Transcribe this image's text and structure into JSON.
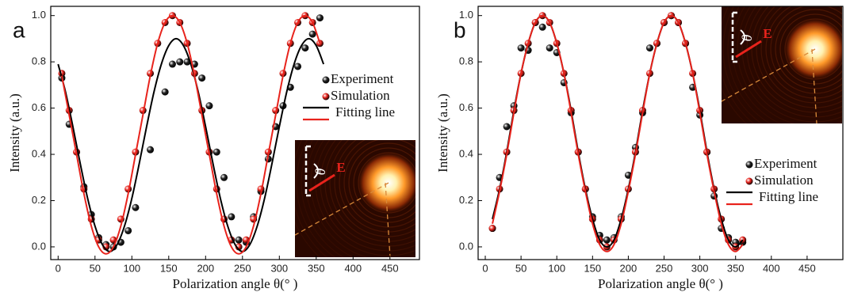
{
  "chart_data": [
    {
      "type": "scatter",
      "panel_label": "a",
      "x_label": "Polarization angle θ(°  )",
      "y_label": "Intensity (a.u.)",
      "xlim": [
        -10,
        490
      ],
      "ylim": [
        -0.055,
        1.04
      ],
      "xticks": [
        0,
        50,
        100,
        150,
        200,
        250,
        300,
        350,
        400,
        450
      ],
      "yticks": [
        {
          "value": 0,
          "label": "0.0"
        },
        0.2,
        0.4,
        0.6,
        0.8,
        {
          "value": 1,
          "label": "1.0"
        }
      ],
      "legend": "upper right",
      "annotations": [
        "θ",
        "E"
      ],
      "series": [
        {
          "name": "Experiment",
          "mode": "markers",
          "color": "#222222",
          "x": [
            5,
            15,
            35,
            45,
            55,
            65,
            75,
            85,
            95,
            105,
            125,
            145,
            155,
            165,
            175,
            185,
            195,
            205,
            215,
            225,
            235,
            245,
            255,
            265,
            275,
            285,
            295,
            305,
            315,
            325,
            335,
            345,
            355
          ],
          "values": [
            0.73,
            0.53,
            0.26,
            0.14,
            0.04,
            0.01,
            0.0,
            0.02,
            0.07,
            0.17,
            0.42,
            0.67,
            0.79,
            0.8,
            0.8,
            0.79,
            0.73,
            0.61,
            0.41,
            0.3,
            0.13,
            0.03,
            0.02,
            0.13,
            0.24,
            0.38,
            0.52,
            0.61,
            0.69,
            0.78,
            0.86,
            0.92,
            0.99
          ]
        },
        {
          "name": "Simulation",
          "mode": "markers",
          "color": "#e8231c",
          "x": [
            5,
            15,
            25,
            35,
            45,
            55,
            65,
            75,
            85,
            95,
            105,
            115,
            125,
            135,
            145,
            155,
            165,
            175,
            185,
            195,
            205,
            215,
            225,
            235,
            245,
            255,
            265,
            275,
            285,
            295,
            305,
            315,
            325,
            335,
            345,
            355
          ],
          "values": [
            0.75,
            0.59,
            0.41,
            0.25,
            0.12,
            0.03,
            0.0,
            0.03,
            0.12,
            0.25,
            0.41,
            0.59,
            0.75,
            0.88,
            0.97,
            1.0,
            0.97,
            0.88,
            0.75,
            0.59,
            0.41,
            0.25,
            0.12,
            0.03,
            0.0,
            0.03,
            0.12,
            0.25,
            0.41,
            0.59,
            0.75,
            0.88,
            0.97,
            1.0,
            0.97,
            0.88
          ]
        },
        {
          "name": "Fitting line",
          "mode": "line",
          "color": "#000000",
          "x": [
            0,
            10,
            20,
            30,
            40,
            50,
            60,
            70,
            80,
            90,
            100,
            110,
            120,
            130,
            140,
            150,
            160,
            170,
            180,
            190,
            200,
            210,
            220,
            230,
            240,
            250,
            260,
            270,
            280,
            290,
            300,
            310,
            320,
            330,
            340,
            350,
            360
          ],
          "values": [
            0.79,
            0.67,
            0.52,
            0.36,
            0.21,
            0.09,
            0.01,
            -0.02,
            0.01,
            0.09,
            0.21,
            0.36,
            0.52,
            0.67,
            0.79,
            0.87,
            0.9,
            0.87,
            0.79,
            0.67,
            0.52,
            0.36,
            0.21,
            0.09,
            0.01,
            -0.02,
            0.01,
            0.09,
            0.21,
            0.36,
            0.52,
            0.67,
            0.79,
            0.87,
            0.9,
            0.87,
            0.79
          ]
        },
        {
          "mode": "line",
          "color": "#e8231c",
          "x": [
            5,
            15,
            25,
            35,
            45,
            55,
            65,
            75,
            85,
            95,
            105,
            115,
            125,
            135,
            145,
            155,
            165,
            175,
            185,
            195,
            205,
            215,
            225,
            235,
            245,
            255,
            265,
            275,
            285,
            295,
            305,
            315,
            325,
            335,
            345,
            355
          ],
          "values": [
            0.74,
            0.57,
            0.4,
            0.23,
            0.09,
            0.0,
            -0.03,
            0.0,
            0.09,
            0.23,
            0.4,
            0.57,
            0.74,
            0.88,
            0.97,
            1.0,
            0.97,
            0.88,
            0.74,
            0.57,
            0.4,
            0.23,
            0.09,
            0.0,
            -0.03,
            0.0,
            0.09,
            0.23,
            0.4,
            0.57,
            0.74,
            0.88,
            0.97,
            1.0,
            0.97,
            0.88
          ]
        }
      ]
    },
    {
      "type": "scatter",
      "panel_label": "b",
      "x_label": "Polarization angle θ(°  )",
      "y_label": "Intensity (a.u.)",
      "xlim": [
        -10,
        500
      ],
      "ylim": [
        -0.055,
        1.04
      ],
      "xticks": [
        0,
        50,
        100,
        150,
        200,
        250,
        300,
        350,
        400,
        450
      ],
      "yticks": [
        {
          "value": 0,
          "label": "0.0"
        },
        0.2,
        0.4,
        0.6,
        0.8,
        {
          "value": 1,
          "label": "1.0"
        }
      ],
      "legend": "lower right",
      "annotations": [
        "θ",
        "E"
      ],
      "series": [
        {
          "name": "Experiment",
          "mode": "markers",
          "color": "#222222",
          "x": [
            10,
            20,
            30,
            40,
            50,
            60,
            70,
            80,
            90,
            100,
            110,
            120,
            130,
            140,
            150,
            160,
            170,
            180,
            190,
            200,
            210,
            220,
            230,
            240,
            250,
            260,
            270,
            280,
            290,
            300,
            310,
            320,
            330,
            340,
            350,
            360
          ],
          "values": [
            0.08,
            0.3,
            0.52,
            0.61,
            0.86,
            0.85,
            0.97,
            0.95,
            0.86,
            0.84,
            0.71,
            0.58,
            0.41,
            0.25,
            0.13,
            0.05,
            0.03,
            0.04,
            0.13,
            0.31,
            0.43,
            0.58,
            0.86,
            0.88,
            0.97,
            1.0,
            0.97,
            0.88,
            0.69,
            0.57,
            0.41,
            0.22,
            0.08,
            0.04,
            0.02,
            0.02
          ]
        },
        {
          "name": "Simulation",
          "mode": "markers",
          "color": "#e8231c",
          "x": [
            10,
            20,
            30,
            40,
            50,
            60,
            70,
            80,
            90,
            100,
            110,
            120,
            130,
            140,
            150,
            160,
            170,
            180,
            190,
            200,
            210,
            220,
            230,
            240,
            250,
            260,
            270,
            280,
            290,
            300,
            310,
            320,
            330,
            340,
            350,
            360
          ],
          "values": [
            0.08,
            0.25,
            0.41,
            0.59,
            0.75,
            0.88,
            0.97,
            1.0,
            0.97,
            0.88,
            0.75,
            0.59,
            0.41,
            0.25,
            0.12,
            0.03,
            0.0,
            0.03,
            0.12,
            0.25,
            0.41,
            0.59,
            0.75,
            0.88,
            0.97,
            1.0,
            0.97,
            0.88,
            0.75,
            0.59,
            0.41,
            0.25,
            0.12,
            0.03,
            0.0,
            0.03
          ]
        },
        {
          "name": "Fitting line",
          "mode": "line",
          "color": "#000000",
          "x": [
            10,
            20,
            30,
            40,
            50,
            60,
            70,
            80,
            90,
            100,
            110,
            120,
            130,
            140,
            150,
            160,
            170,
            180,
            190,
            200,
            210,
            220,
            230,
            240,
            250,
            260,
            270,
            280,
            290,
            300,
            310,
            320,
            330,
            340,
            350,
            360
          ],
          "values": [
            0.12,
            0.25,
            0.41,
            0.59,
            0.75,
            0.88,
            0.97,
            1.0,
            0.97,
            0.88,
            0.75,
            0.59,
            0.41,
            0.25,
            0.12,
            0.03,
            0.0,
            0.03,
            0.12,
            0.25,
            0.41,
            0.59,
            0.75,
            0.88,
            0.97,
            1.0,
            0.97,
            0.88,
            0.75,
            0.59,
            0.41,
            0.25,
            0.12,
            0.03,
            0.0,
            0.03
          ]
        },
        {
          "mode": "line",
          "color": "#e8231c",
          "x": [
            10,
            20,
            30,
            40,
            50,
            60,
            70,
            80,
            90,
            100,
            110,
            120,
            130,
            140,
            150,
            160,
            170,
            180,
            190,
            200,
            210,
            220,
            230,
            240,
            250,
            260,
            270,
            280,
            290,
            300,
            310,
            320,
            330,
            340,
            350,
            360
          ],
          "values": [
            0.1,
            0.24,
            0.4,
            0.58,
            0.75,
            0.88,
            0.97,
            1.0,
            0.97,
            0.88,
            0.75,
            0.58,
            0.4,
            0.24,
            0.1,
            0.01,
            -0.02,
            0.01,
            0.1,
            0.24,
            0.4,
            0.58,
            0.75,
            0.88,
            0.97,
            1.0,
            0.97,
            0.88,
            0.75,
            0.58,
            0.4,
            0.24,
            0.1,
            0.01,
            -0.02,
            0.01
          ]
        }
      ]
    }
  ]
}
